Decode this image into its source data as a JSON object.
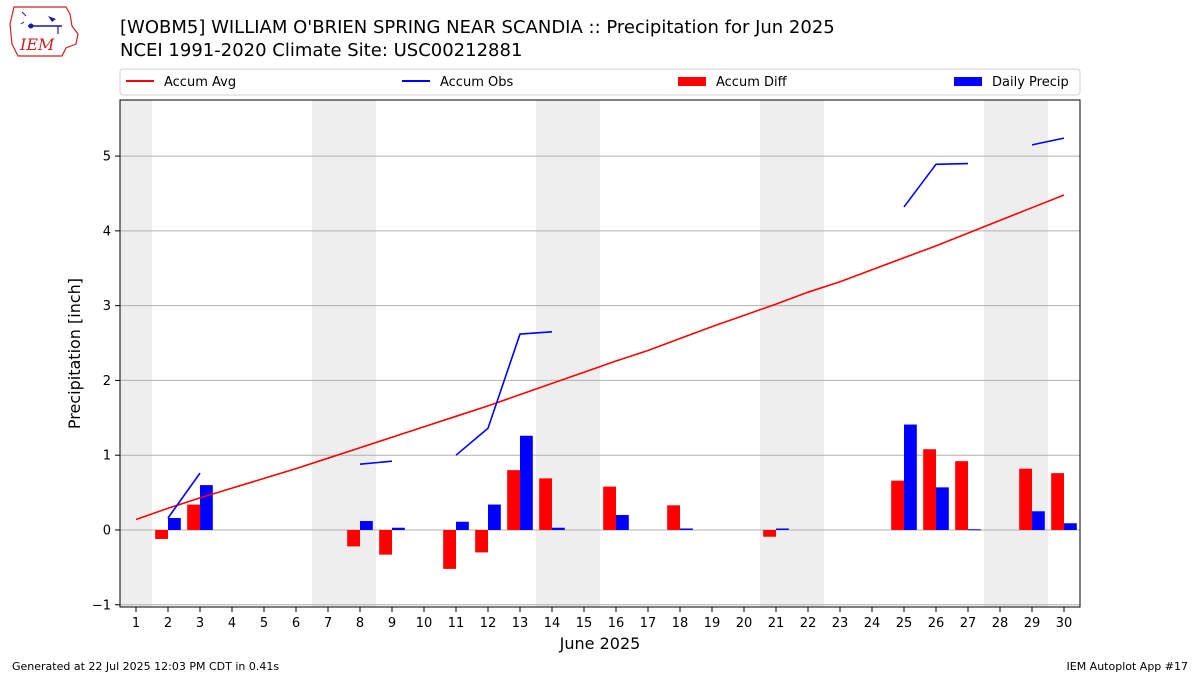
{
  "title": "[WOBM5] WILLIAM O'BRIEN SPRING NEAR SCANDIA :: Precipitation for Jun 2025",
  "subtitle": "NCEI 1991-2020 Climate Site: USC00212881",
  "footer_left": "Generated at 22 Jul 2025 12:03 PM CDT in 0.41s",
  "footer_right": "IEM Autoplot App #17",
  "logo_text": "IEM",
  "colors": {
    "accum_avg": "#ff0000",
    "accum_obs": "#0000ff",
    "accum_diff": "#ff0000",
    "daily_precip": "#0000ff",
    "weekend_shade": "#eeeeee",
    "grid": "#b0b0b0"
  },
  "chart_data": {
    "type": "bar",
    "xlabel": "June 2025",
    "ylabel": "Precipitation [inch]",
    "xlim": [
      0.5,
      30.5
    ],
    "ylim": [
      -1.03,
      5.75
    ],
    "x_ticks": [
      1,
      2,
      3,
      4,
      5,
      6,
      7,
      8,
      9,
      10,
      11,
      12,
      13,
      14,
      15,
      16,
      17,
      18,
      19,
      20,
      21,
      22,
      23,
      24,
      25,
      26,
      27,
      28,
      29,
      30
    ],
    "y_ticks": [
      -1,
      0,
      1,
      2,
      3,
      4,
      5
    ],
    "grid": "horizontal",
    "legend_position": "top",
    "weekend_days": [
      1,
      7,
      8,
      14,
      15,
      21,
      22,
      28,
      29
    ],
    "days": [
      1,
      2,
      3,
      4,
      5,
      6,
      7,
      8,
      9,
      10,
      11,
      12,
      13,
      14,
      15,
      16,
      17,
      18,
      19,
      20,
      21,
      22,
      23,
      24,
      25,
      26,
      27,
      28,
      29,
      30
    ],
    "series": [
      {
        "name": "Accum Avg",
        "kind": "line",
        "values": [
          0.14,
          0.29,
          0.43,
          0.56,
          0.69,
          0.82,
          0.96,
          1.1,
          1.24,
          1.38,
          1.52,
          1.66,
          1.81,
          1.96,
          2.11,
          2.26,
          2.4,
          2.56,
          2.72,
          2.87,
          3.02,
          3.18,
          3.32,
          3.48,
          3.64,
          3.8,
          3.97,
          4.14,
          4.31,
          4.48
        ]
      },
      {
        "name": "Accum Obs",
        "kind": "line",
        "values": [
          null,
          0.16,
          0.76,
          null,
          null,
          null,
          null,
          0.88,
          0.92,
          null,
          1.0,
          1.36,
          2.62,
          2.65,
          null,
          null,
          null,
          null,
          null,
          null,
          null,
          null,
          null,
          null,
          4.32,
          4.89,
          4.9,
          null,
          5.15,
          5.24
        ]
      },
      {
        "name": "Accum Diff",
        "kind": "bar",
        "values": [
          null,
          -0.12,
          0.34,
          null,
          null,
          null,
          null,
          -0.22,
          -0.33,
          null,
          -0.52,
          -0.3,
          0.8,
          0.69,
          null,
          0.58,
          null,
          0.33,
          null,
          null,
          -0.09,
          null,
          null,
          null,
          0.66,
          1.08,
          0.92,
          null,
          0.82,
          0.76
        ]
      },
      {
        "name": "Daily Precip",
        "kind": "bar",
        "values": [
          null,
          0.16,
          0.6,
          null,
          null,
          null,
          null,
          0.12,
          0.03,
          null,
          0.11,
          0.34,
          1.26,
          0.03,
          null,
          0.2,
          null,
          0.02,
          null,
          null,
          0.02,
          null,
          null,
          null,
          1.41,
          0.57,
          0.01,
          null,
          0.25,
          0.09
        ]
      }
    ]
  }
}
